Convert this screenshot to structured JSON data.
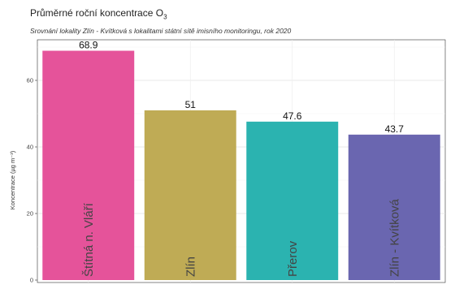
{
  "title_main": "Průměrné roční koncentrace O",
  "title_sub": "3",
  "subtitle": "Srovnání lokality Zlín - Kvítková s lokalitami státní sítě imisního monitoringu, rok 2020",
  "chart_data": {
    "type": "bar",
    "title": "Průměrné roční koncentrace O3",
    "subtitle": "Srovnání lokality Zlín - Kvítková s lokalitami státní sítě imisního monitoringu, rok 2020",
    "xlabel": "",
    "ylabel": "Koncentrace (µg m⁻³)",
    "ylim": [
      0,
      70
    ],
    "yticks": [
      0,
      20,
      40,
      60
    ],
    "grid": true,
    "categories": [
      "Štítná n. Vláří",
      "Zlín",
      "Přerov",
      "Zlín - Kvítková"
    ],
    "values": [
      68.9,
      51,
      47.6,
      43.7
    ],
    "value_labels": [
      "68.9",
      "51",
      "47.6",
      "43.7"
    ],
    "colors": [
      "#e5539a",
      "#bfab55",
      "#2bb3b0",
      "#6a66b0"
    ]
  }
}
